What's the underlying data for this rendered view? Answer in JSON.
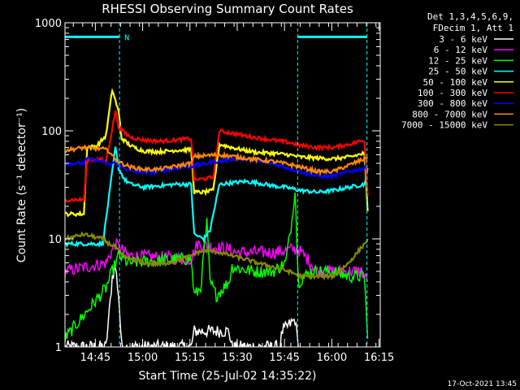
{
  "chart_data": {
    "type": "line",
    "title": "RHESSI Observing Summary Count Rates",
    "xlabel": "Start Time (25-Jul-02 14:35:22)",
    "ylabel": "Count Rate (s⁻¹ detector⁻¹)",
    "x_unit": "minutes after 14:35:22",
    "xlim": [
      0,
      100
    ],
    "ylim": [
      1,
      1000
    ],
    "yscale": "log",
    "x_tick_labels": [
      "14:45",
      "15:00",
      "15:15",
      "15:30",
      "15:45",
      "16:00",
      "16:15"
    ],
    "x_tick_minutes": [
      9.63,
      24.63,
      39.63,
      54.63,
      69.63,
      84.63,
      99.63
    ],
    "y_tick_labels": [
      "1",
      "10",
      "100",
      "1000"
    ],
    "y_tick_values": [
      1,
      10,
      100,
      1000
    ],
    "legend_header": [
      "Det 1,3,4,5,6,9,",
      "FDecim 1, Att 1"
    ],
    "legend_position": "right",
    "footer_date": "17-Oct-2021 13:45",
    "night_flag": {
      "label": "N",
      "color": "#00ffff",
      "level": 740,
      "intervals": [
        [
          0,
          17.3
        ],
        [
          73.8,
          95.8
        ]
      ]
    },
    "vlines": [
      17.3,
      73.8,
      95.8
    ],
    "series": [
      {
        "name": "3 - 6 keV",
        "color": "#ffffff",
        "points": [
          [
            0,
            1.0
          ],
          [
            13,
            1.0
          ],
          [
            14,
            2.0
          ],
          [
            15,
            4.5
          ],
          [
            16,
            5.5
          ],
          [
            17,
            3.0
          ],
          [
            18,
            1.0
          ],
          [
            40,
            1.0
          ],
          [
            41,
            1.4
          ],
          [
            52,
            1.4
          ],
          [
            53,
            1.0
          ],
          [
            68,
            1.0
          ],
          [
            69,
            1.4
          ],
          [
            73,
            1.8
          ],
          [
            74,
            1.0
          ]
        ]
      },
      {
        "name": "6 - 12 keV",
        "color": "#ff00ff",
        "points": [
          [
            0,
            5.0
          ],
          [
            13,
            6.0
          ],
          [
            16,
            9.0
          ],
          [
            17,
            8.5
          ],
          [
            20,
            7.0
          ],
          [
            40,
            6.5
          ],
          [
            42,
            9.0
          ],
          [
            52,
            8.0
          ],
          [
            54,
            7.5
          ],
          [
            66,
            7.5
          ],
          [
            70,
            7.8
          ],
          [
            72,
            8.0
          ],
          [
            74,
            8.0
          ],
          [
            78,
            6.0
          ],
          [
            80,
            5.0
          ],
          [
            94,
            5.0
          ],
          [
            96,
            4.0
          ]
        ]
      },
      {
        "name": "12 - 25 keV",
        "color": "#00ff00",
        "points": [
          [
            0,
            1.2
          ],
          [
            13,
            3.5
          ],
          [
            15,
            5.0
          ],
          [
            17,
            7.0
          ],
          [
            20,
            6.0
          ],
          [
            36,
            6.5
          ],
          [
            40,
            6.5
          ],
          [
            41,
            3.0
          ],
          [
            43,
            3.5
          ],
          [
            45,
            14
          ],
          [
            46,
            4.0
          ],
          [
            48,
            3.0
          ],
          [
            52,
            4.0
          ],
          [
            53,
            5.5
          ],
          [
            60,
            5.0
          ],
          [
            66,
            5.0
          ],
          [
            70,
            6.0
          ],
          [
            72,
            15
          ],
          [
            73,
            30
          ],
          [
            74,
            4.0
          ],
          [
            78,
            5.0
          ],
          [
            85,
            5.0
          ],
          [
            90,
            4.5
          ],
          [
            95,
            4.5
          ],
          [
            96,
            1.2
          ]
        ]
      },
      {
        "name": "25 - 50 keV",
        "color": "#00ffff",
        "points": [
          [
            0,
            9.0
          ],
          [
            8,
            9.0
          ],
          [
            12,
            9.0
          ],
          [
            14,
            25
          ],
          [
            16,
            70
          ],
          [
            17,
            45
          ],
          [
            19,
            35
          ],
          [
            21,
            32
          ],
          [
            25,
            30
          ],
          [
            30,
            31
          ],
          [
            35,
            32
          ],
          [
            40,
            32
          ],
          [
            41,
            11
          ],
          [
            44,
            10
          ],
          [
            46,
            12
          ],
          [
            49,
            32
          ],
          [
            53,
            33
          ],
          [
            57,
            34
          ],
          [
            61,
            33
          ],
          [
            66,
            31
          ],
          [
            70,
            30
          ],
          [
            75,
            28
          ],
          [
            80,
            27
          ],
          [
            85,
            28
          ],
          [
            90,
            30
          ],
          [
            95,
            32
          ],
          [
            96,
            45
          ]
        ]
      },
      {
        "name": "50 - 100 keV",
        "color": "#ffff00",
        "points": [
          [
            0,
            17
          ],
          [
            6,
            17
          ],
          [
            7,
            70
          ],
          [
            10,
            72
          ],
          [
            13,
            90
          ],
          [
            15,
            240
          ],
          [
            17,
            150
          ],
          [
            18,
            85
          ],
          [
            21,
            72
          ],
          [
            25,
            65
          ],
          [
            30,
            64
          ],
          [
            35,
            66
          ],
          [
            40,
            67
          ],
          [
            41,
            27
          ],
          [
            44,
            27
          ],
          [
            47,
            28
          ],
          [
            49,
            75
          ],
          [
            53,
            70
          ],
          [
            57,
            66
          ],
          [
            61,
            63
          ],
          [
            66,
            62
          ],
          [
            71,
            60
          ],
          [
            75,
            57
          ],
          [
            80,
            56
          ],
          [
            85,
            55
          ],
          [
            90,
            57
          ],
          [
            95,
            62
          ],
          [
            96,
            18
          ]
        ]
      },
      {
        "name": "100 - 300 keV",
        "color": "#ff0000",
        "points": [
          [
            0,
            23
          ],
          [
            6,
            23
          ],
          [
            7,
            54
          ],
          [
            10,
            55
          ],
          [
            13,
            52
          ],
          [
            15,
            105
          ],
          [
            16,
            155
          ],
          [
            17,
            108
          ],
          [
            19,
            95
          ],
          [
            21,
            87
          ],
          [
            25,
            82
          ],
          [
            30,
            80
          ],
          [
            35,
            82
          ],
          [
            40,
            85
          ],
          [
            41,
            35
          ],
          [
            44,
            36
          ],
          [
            47,
            37
          ],
          [
            49,
            100
          ],
          [
            53,
            95
          ],
          [
            57,
            90
          ],
          [
            61,
            86
          ],
          [
            66,
            82
          ],
          [
            71,
            78
          ],
          [
            75,
            73
          ],
          [
            80,
            70
          ],
          [
            85,
            70
          ],
          [
            90,
            75
          ],
          [
            95,
            82
          ],
          [
            96,
            25
          ]
        ]
      },
      {
        "name": "300 - 800 keV",
        "color": "#0000ff",
        "points": [
          [
            0,
            50
          ],
          [
            6,
            50
          ],
          [
            7,
            55
          ],
          [
            12,
            52
          ],
          [
            14,
            48
          ],
          [
            16,
            52
          ],
          [
            17,
            48
          ],
          [
            19,
            45
          ],
          [
            21,
            42
          ],
          [
            25,
            41
          ],
          [
            30,
            42
          ],
          [
            35,
            45
          ],
          [
            40,
            47
          ],
          [
            41,
            48
          ],
          [
            44,
            49
          ],
          [
            47,
            52
          ],
          [
            49,
            52
          ],
          [
            53,
            55
          ],
          [
            57,
            55
          ],
          [
            61,
            52
          ],
          [
            66,
            50
          ],
          [
            71,
            45
          ],
          [
            75,
            42
          ],
          [
            80,
            38
          ],
          [
            85,
            38
          ],
          [
            90,
            42
          ],
          [
            95,
            45
          ],
          [
            96,
            48
          ]
        ]
      },
      {
        "name": "800 - 7000 keV",
        "color": "#ff8800",
        "points": [
          [
            0,
            66
          ],
          [
            6,
            70
          ],
          [
            12,
            68
          ],
          [
            14,
            65
          ],
          [
            16,
            54
          ],
          [
            18,
            50
          ],
          [
            21,
            46
          ],
          [
            25,
            44
          ],
          [
            30,
            44
          ],
          [
            35,
            47
          ],
          [
            40,
            50
          ],
          [
            41,
            58
          ],
          [
            45,
            59
          ],
          [
            49,
            60
          ],
          [
            53,
            58
          ],
          [
            57,
            56
          ],
          [
            61,
            54
          ],
          [
            66,
            52
          ],
          [
            71,
            49
          ],
          [
            75,
            46
          ],
          [
            80,
            42
          ],
          [
            85,
            42
          ],
          [
            90,
            48
          ],
          [
            95,
            55
          ],
          [
            96,
            57
          ]
        ]
      },
      {
        "name": "7000 - 15000 keV",
        "color": "#888800",
        "points": [
          [
            0,
            10
          ],
          [
            6,
            11
          ],
          [
            12,
            10
          ],
          [
            14,
            9
          ],
          [
            16,
            8.5
          ],
          [
            18,
            7.0
          ],
          [
            21,
            6.5
          ],
          [
            25,
            6.0
          ],
          [
            30,
            5.8
          ],
          [
            35,
            6.2
          ],
          [
            40,
            7.0
          ],
          [
            42,
            7.5
          ],
          [
            45,
            7.8
          ],
          [
            49,
            7.5
          ],
          [
            53,
            7.0
          ],
          [
            57,
            6.5
          ],
          [
            61,
            6.0
          ],
          [
            66,
            5.5
          ],
          [
            71,
            5.0
          ],
          [
            75,
            4.5
          ],
          [
            80,
            4.5
          ],
          [
            85,
            4.5
          ],
          [
            90,
            6.0
          ],
          [
            95,
            9.0
          ],
          [
            96,
            10
          ]
        ]
      }
    ]
  }
}
